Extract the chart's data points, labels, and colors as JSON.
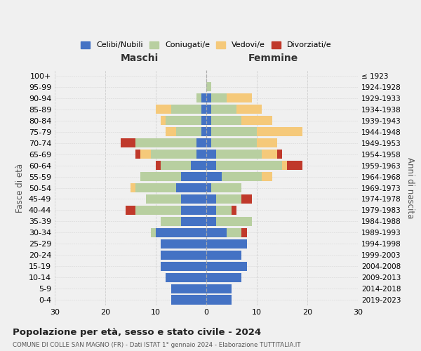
{
  "age_groups": [
    "0-4",
    "5-9",
    "10-14",
    "15-19",
    "20-24",
    "25-29",
    "30-34",
    "35-39",
    "40-44",
    "45-49",
    "50-54",
    "55-59",
    "60-64",
    "65-69",
    "70-74",
    "75-79",
    "80-84",
    "85-89",
    "90-94",
    "95-99",
    "100+"
  ],
  "birth_years": [
    "2019-2023",
    "2014-2018",
    "2009-2013",
    "2004-2008",
    "1999-2003",
    "1994-1998",
    "1989-1993",
    "1984-1988",
    "1979-1983",
    "1974-1978",
    "1969-1973",
    "1964-1968",
    "1959-1963",
    "1954-1958",
    "1949-1953",
    "1944-1948",
    "1939-1943",
    "1934-1938",
    "1929-1933",
    "1924-1928",
    "≤ 1923"
  ],
  "colors": {
    "celibi": "#4472c4",
    "coniugati": "#b8cfa0",
    "vedovi": "#f5c97a",
    "divorziati": "#c0392b"
  },
  "males": {
    "celibi": [
      7,
      7,
      8,
      9,
      9,
      9,
      10,
      5,
      5,
      5,
      6,
      5,
      3,
      2,
      2,
      1,
      1,
      1,
      1,
      0,
      0
    ],
    "coniugati": [
      0,
      0,
      0,
      0,
      0,
      0,
      1,
      4,
      9,
      7,
      8,
      8,
      6,
      9,
      12,
      5,
      7,
      6,
      1,
      0,
      0
    ],
    "vedovi": [
      0,
      0,
      0,
      0,
      0,
      0,
      0,
      0,
      0,
      0,
      1,
      0,
      0,
      2,
      0,
      2,
      1,
      3,
      0,
      0,
      0
    ],
    "divorziati": [
      0,
      0,
      0,
      0,
      0,
      0,
      0,
      0,
      2,
      0,
      0,
      0,
      1,
      1,
      3,
      0,
      0,
      0,
      0,
      0,
      0
    ]
  },
  "females": {
    "celibi": [
      5,
      5,
      7,
      8,
      7,
      8,
      4,
      2,
      2,
      2,
      1,
      3,
      2,
      2,
      1,
      1,
      1,
      1,
      1,
      0,
      0
    ],
    "coniugati": [
      0,
      0,
      0,
      0,
      0,
      0,
      3,
      7,
      3,
      5,
      6,
      8,
      13,
      9,
      9,
      9,
      6,
      5,
      3,
      1,
      0
    ],
    "vedovi": [
      0,
      0,
      0,
      0,
      0,
      0,
      0,
      0,
      0,
      0,
      0,
      2,
      1,
      3,
      4,
      9,
      6,
      5,
      5,
      0,
      0
    ],
    "divorziati": [
      0,
      0,
      0,
      0,
      0,
      0,
      1,
      0,
      1,
      2,
      0,
      0,
      3,
      1,
      0,
      0,
      0,
      0,
      0,
      0,
      0
    ]
  },
  "xlim": [
    -30,
    30
  ],
  "xticks": [
    -30,
    -20,
    -10,
    0,
    10,
    20,
    30
  ],
  "xticklabels": [
    "30",
    "20",
    "10",
    "0",
    "10",
    "20",
    "30"
  ],
  "title": "Popolazione per età, sesso e stato civile - 2024",
  "subtitle": "COMUNE DI COLLE SAN MAGNO (FR) - Dati ISTAT 1° gennaio 2024 - Elaborazione TUTTITALIA.IT",
  "ylabel_left": "Fasce di età",
  "ylabel_right": "Anni di nascita",
  "label_maschi": "Maschi",
  "label_femmine": "Femmine",
  "legend_labels": [
    "Celibi/Nubili",
    "Coniugati/e",
    "Vedovi/e",
    "Divorziati/e"
  ],
  "background_color": "#f0f0f0",
  "bar_height": 0.82
}
